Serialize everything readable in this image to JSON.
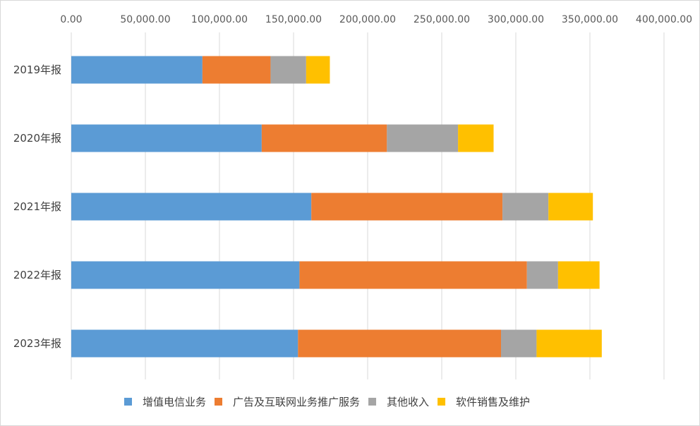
{
  "chart_data": {
    "type": "bar",
    "orientation": "horizontal",
    "stacked": true,
    "categories": [
      "2019年报",
      "2020年报",
      "2021年报",
      "2022年报",
      "2023年报"
    ],
    "series": [
      {
        "name": "增值电信业务",
        "color": "#5B9BD5",
        "values": [
          88500,
          128500,
          162000,
          154000,
          153000
        ]
      },
      {
        "name": "广告及互联网业务推广服务",
        "color": "#ED7D31",
        "values": [
          46000,
          84500,
          129000,
          153500,
          137000
        ]
      },
      {
        "name": "其他收入",
        "color": "#A5A5A5",
        "values": [
          24000,
          48000,
          31000,
          21000,
          24000
        ]
      },
      {
        "name": "软件销售及维护",
        "color": "#FFC000",
        "values": [
          16000,
          24000,
          30000,
          28000,
          44000
        ]
      }
    ],
    "xlim": [
      0,
      400000
    ],
    "xticks": [
      0,
      50000,
      100000,
      150000,
      200000,
      250000,
      300000,
      350000,
      400000
    ],
    "xtick_labels": [
      "0.00",
      "50,000.00",
      "100,000.00",
      "150,000.00",
      "200,000.00",
      "250,000.00",
      "300,000.00",
      "350,000.00",
      "400,000.00"
    ],
    "x_axis_position": "top",
    "grid": true,
    "legend_position": "bottom"
  }
}
